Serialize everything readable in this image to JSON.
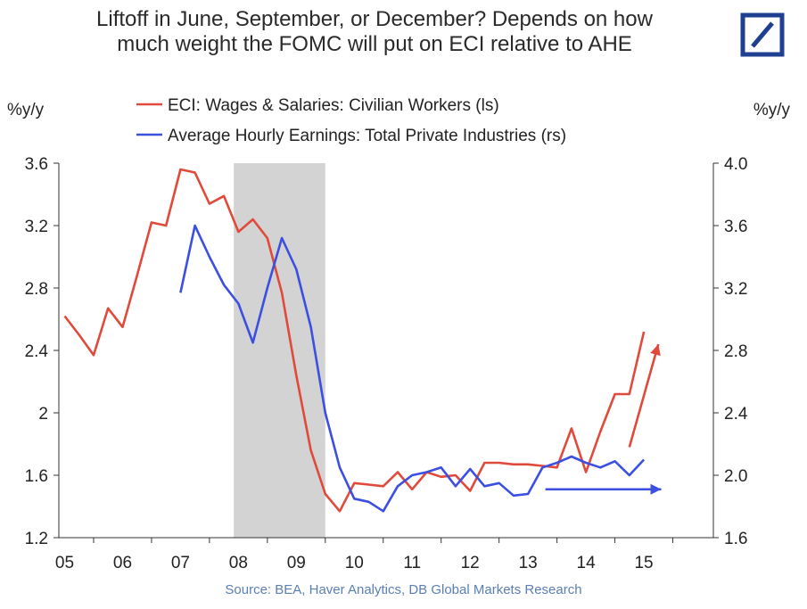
{
  "header": {
    "title_line1": "Liftoff in June, September, or December? Depends on how",
    "title_line2": "much weight the FOMC will put on ECI relative to AHE",
    "logo_icon": "deutsche-bank-logo-icon",
    "logo_color": "#1f3f91"
  },
  "footer": {
    "source": "Source: BEA, Haver Analytics, DB Global Markets Research"
  },
  "chart_data": {
    "type": "line",
    "left_axis_label": "%y/y",
    "right_axis_label": "%y/y",
    "x_ticks": [
      "05",
      "06",
      "07",
      "08",
      "09",
      "10",
      "11",
      "12",
      "13",
      "14",
      "15"
    ],
    "x_range": [
      2004.9,
      2016.2
    ],
    "left_ylim": [
      1.2,
      3.6
    ],
    "left_ticks": [
      "1.2",
      "1.6",
      "2",
      "2.4",
      "2.8",
      "3.2",
      "3.6"
    ],
    "right_ylim": [
      1.6,
      4.0
    ],
    "right_ticks": [
      "1.6",
      "2.0",
      "2.4",
      "2.8",
      "3.2",
      "3.6",
      "4.0"
    ],
    "recession": {
      "start": 2007.92,
      "end": 2009.5,
      "color": "#d3d3d3"
    },
    "series": [
      {
        "name": "ECI: Wages & Salaries: Civilian Workers (ls)",
        "axis": "left",
        "color": "#e04a3a",
        "x": [
          2005.0,
          2005.25,
          2005.5,
          2005.75,
          2006.0,
          2006.25,
          2006.5,
          2006.75,
          2007.0,
          2007.25,
          2007.5,
          2007.75,
          2008.0,
          2008.25,
          2008.5,
          2008.75,
          2009.0,
          2009.25,
          2009.5,
          2009.75,
          2010.0,
          2010.25,
          2010.5,
          2010.75,
          2011.0,
          2011.25,
          2011.5,
          2011.75,
          2012.0,
          2012.25,
          2012.5,
          2012.75,
          2013.0,
          2013.25,
          2013.5,
          2013.75,
          2014.0,
          2014.25,
          2014.5,
          2014.75,
          2015.0
        ],
        "values": [
          2.62,
          2.5,
          2.37,
          2.67,
          2.55,
          2.88,
          3.22,
          3.2,
          3.56,
          3.54,
          3.34,
          3.39,
          3.16,
          3.24,
          3.12,
          2.77,
          2.24,
          1.76,
          1.48,
          1.37,
          1.55,
          1.54,
          1.53,
          1.62,
          1.51,
          1.62,
          1.59,
          1.6,
          1.5,
          1.68,
          1.68,
          1.67,
          1.67,
          1.66,
          1.65,
          1.9,
          1.62,
          1.88,
          2.12,
          2.12,
          2.52
        ]
      },
      {
        "name": "Average Hourly Earnings: Total Private Industries (rs)",
        "axis": "right",
        "color": "#3b4fe0",
        "x": [
          2007.0,
          2007.25,
          2007.5,
          2007.75,
          2008.0,
          2008.25,
          2008.5,
          2008.75,
          2009.0,
          2009.25,
          2009.5,
          2009.75,
          2010.0,
          2010.25,
          2010.5,
          2010.75,
          2011.0,
          2011.25,
          2011.5,
          2011.75,
          2012.0,
          2012.25,
          2012.5,
          2012.75,
          2013.0,
          2013.25,
          2013.5,
          2013.75,
          2014.0,
          2014.25,
          2014.5,
          2014.75,
          2015.0
        ],
        "values": [
          3.17,
          3.6,
          3.4,
          3.22,
          3.1,
          2.85,
          3.2,
          3.52,
          3.32,
          2.95,
          2.4,
          2.05,
          1.85,
          1.83,
          1.77,
          1.93,
          2.0,
          2.02,
          2.05,
          1.93,
          2.04,
          1.93,
          1.95,
          1.87,
          1.88,
          2.05,
          2.08,
          2.12,
          2.08,
          2.05,
          2.09,
          2.0,
          2.1
        ]
      }
    ],
    "annotations": [
      {
        "type": "arrow",
        "color": "#e04a3a",
        "from": [
          2014.75,
          1.78
        ],
        "to": [
          2015.25,
          2.44
        ],
        "axis": "left"
      },
      {
        "type": "arrow",
        "color": "#3b4fe0",
        "from": [
          2013.3,
          1.91
        ],
        "to": [
          2015.3,
          1.91
        ],
        "axis": "right"
      }
    ]
  }
}
